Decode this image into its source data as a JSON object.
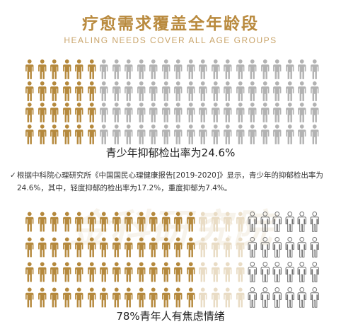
{
  "title": "疗愈需求覆盖全年龄段",
  "subtitle": "HEALING NEEDS COVER ALL AGE GROUPS",
  "teen_stat": "青少年抑郁检出率为24.6%",
  "note": {
    "check_icon": "✓",
    "text": "根据中科院心理研究所《中国国民心理健康报告[2019-2020]》显示，青少年的抑郁检出率为24.6%，其中，轻度抑郁的检出率为17.2%，重度抑郁为7.4%。"
  },
  "watermark": "金科研究院",
  "youth_stat": "78%青年人有焦虑情绪",
  "colors": {
    "gold": "#b5893d",
    "gray": "#b3b3b3",
    "light_gold": "#e9dcc5",
    "outline": "#6e6e6e",
    "title": "#b98a3e"
  },
  "icon_grids": [
    {
      "rows": 4,
      "columns": 24,
      "groups": [
        {
          "style": "gold",
          "count_per_row": 6
        },
        {
          "style": "gray",
          "count_per_row": 18
        }
      ]
    },
    {
      "rows": 4,
      "columns": 24,
      "groups": [
        {
          "style": "gold",
          "count_per_row": 14
        },
        {
          "style": "light_gold",
          "count_per_row": 4
        },
        {
          "style": "outline",
          "count_per_row": 6
        }
      ]
    }
  ]
}
